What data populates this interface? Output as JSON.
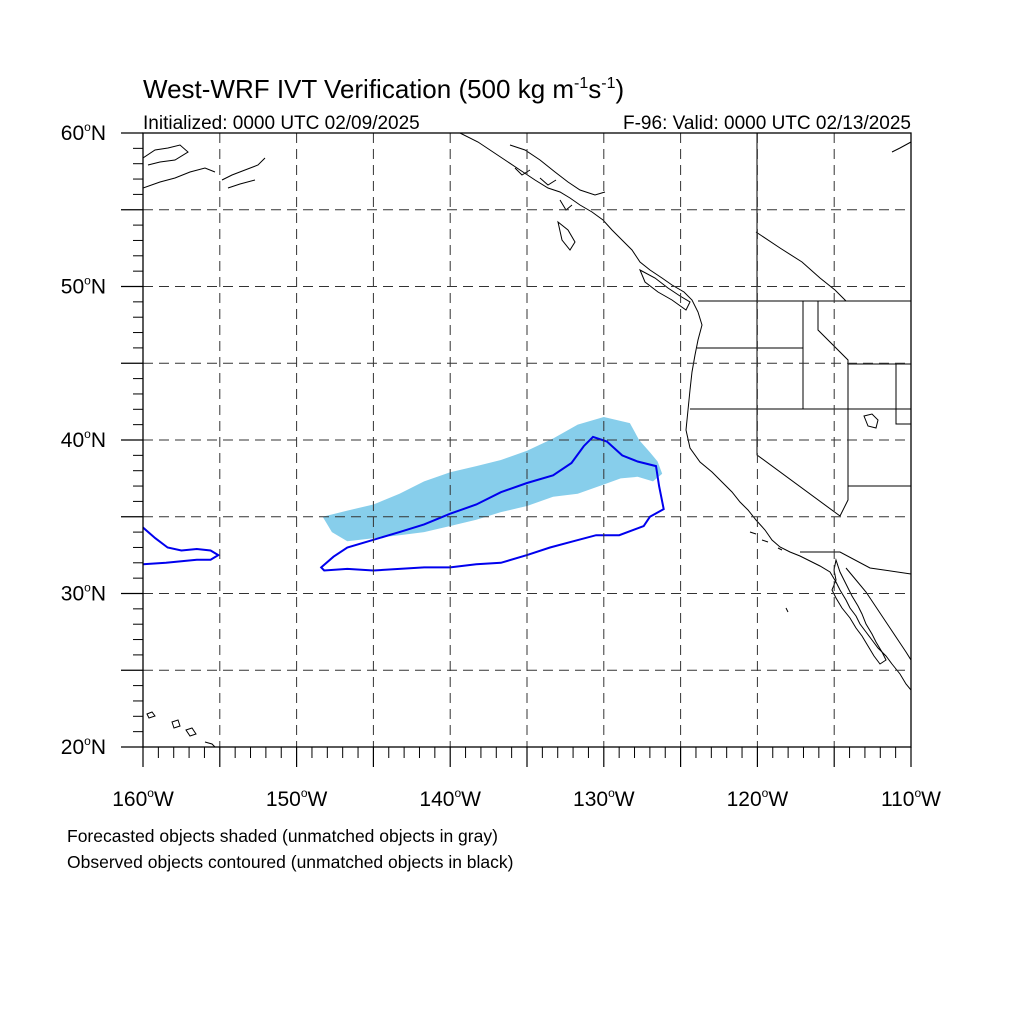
{
  "title": {
    "main_prefix": "West-WRF IVT Verification (500 kg m",
    "unit_exp1": "-1",
    "unit_mid": "s",
    "unit_exp2": "-1",
    "unit_suffix": ")"
  },
  "subtitle_left": "Initialized: 0000 UTC 02/09/2025",
  "subtitle_right": "F-96: Valid: 0000 UTC 02/13/2025",
  "map": {
    "lon_min": -160,
    "lon_max": -110,
    "lat_min": 20,
    "lat_max": 60,
    "grid_style": "dashed",
    "lat_labels": [
      "20",
      "30",
      "40",
      "50",
      "60"
    ],
    "lat_suffix": "N",
    "lon_labels": [
      "160",
      "150",
      "140",
      "130",
      "120",
      "110"
    ],
    "lon_suffix": "W",
    "degree_symbol": "o"
  },
  "colors": {
    "forecast_fill": "#87ceeb",
    "observed_contour": "#0000ee",
    "coastline": "#000000",
    "grid": "#333333"
  },
  "forecast_object": {
    "polygon_lonlat": [
      [
        -148.3,
        35.0
      ],
      [
        -146.7,
        35.4
      ],
      [
        -145.0,
        35.8
      ],
      [
        -143.3,
        36.5
      ],
      [
        -141.7,
        37.3
      ],
      [
        -140.0,
        37.9
      ],
      [
        -138.3,
        38.3
      ],
      [
        -136.7,
        38.7
      ],
      [
        -135.0,
        39.3
      ],
      [
        -133.3,
        40.1
      ],
      [
        -131.7,
        41.0
      ],
      [
        -130.0,
        41.5
      ],
      [
        -128.3,
        41.1
      ],
      [
        -127.7,
        40.0
      ],
      [
        -127.0,
        39.2
      ],
      [
        -126.5,
        38.6
      ],
      [
        -126.2,
        37.8
      ],
      [
        -126.8,
        37.3
      ],
      [
        -127.8,
        37.6
      ],
      [
        -128.9,
        37.5
      ],
      [
        -130.0,
        37.1
      ],
      [
        -131.7,
        36.5
      ],
      [
        -133.3,
        36.3
      ],
      [
        -135.0,
        35.7
      ],
      [
        -136.7,
        35.3
      ],
      [
        -138.3,
        34.8
      ],
      [
        -140.0,
        34.4
      ],
      [
        -141.7,
        34.0
      ],
      [
        -143.3,
        33.8
      ],
      [
        -145.0,
        33.6
      ],
      [
        -146.7,
        33.4
      ],
      [
        -147.7,
        34.0
      ]
    ]
  },
  "observed_objects": [
    {
      "polygon_lonlat": [
        [
          -148.4,
          31.7
        ],
        [
          -147.6,
          32.4
        ],
        [
          -146.7,
          33.0
        ],
        [
          -145.0,
          33.5
        ],
        [
          -143.3,
          34.0
        ],
        [
          -141.7,
          34.5
        ],
        [
          -140.0,
          35.2
        ],
        [
          -138.3,
          35.8
        ],
        [
          -136.7,
          36.6
        ],
        [
          -135.0,
          37.2
        ],
        [
          -133.3,
          37.7
        ],
        [
          -132.1,
          38.5
        ],
        [
          -131.3,
          39.6
        ],
        [
          -130.7,
          40.2
        ],
        [
          -129.8,
          39.9
        ],
        [
          -128.8,
          39.0
        ],
        [
          -127.8,
          38.6
        ],
        [
          -126.6,
          38.3
        ],
        [
          -126.4,
          37.0
        ],
        [
          -126.1,
          35.5
        ],
        [
          -127.0,
          35.0
        ],
        [
          -127.4,
          34.4
        ],
        [
          -129.0,
          33.8
        ],
        [
          -130.5,
          33.8
        ],
        [
          -132.0,
          33.4
        ],
        [
          -133.5,
          33.0
        ],
        [
          -135.0,
          32.5
        ],
        [
          -136.7,
          32.0
        ],
        [
          -138.3,
          31.9
        ],
        [
          -140.0,
          31.7
        ],
        [
          -141.7,
          31.7
        ],
        [
          -143.3,
          31.6
        ],
        [
          -145.0,
          31.5
        ],
        [
          -146.7,
          31.6
        ],
        [
          -148.2,
          31.5
        ]
      ]
    },
    {
      "polygon_lonlat": [
        [
          -160.0,
          34.3
        ],
        [
          -159.2,
          33.6
        ],
        [
          -158.4,
          33.0
        ],
        [
          -157.5,
          32.8
        ],
        [
          -156.5,
          32.9
        ],
        [
          -155.6,
          32.8
        ],
        [
          -155.1,
          32.5
        ],
        [
          -155.6,
          32.2
        ],
        [
          -156.5,
          32.2
        ],
        [
          -157.5,
          32.1
        ],
        [
          -158.5,
          32.0
        ],
        [
          -160.0,
          31.9
        ]
      ],
      "open": true
    }
  ],
  "footnotes": [
    "Forecasted objects shaded (unmatched objects in gray)",
    "Observed objects contoured (unmatched objects in black)"
  ]
}
